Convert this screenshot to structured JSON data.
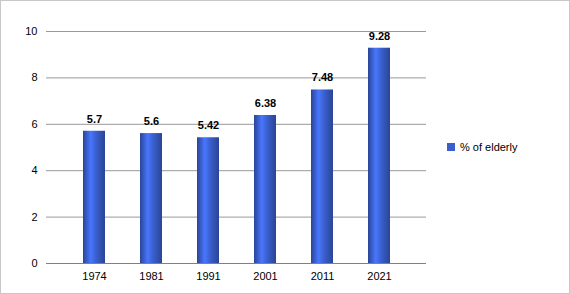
{
  "chart_data": {
    "type": "bar",
    "categories": [
      "1974",
      "1981",
      "1991",
      "2001",
      "2011",
      "2021"
    ],
    "series": [
      {
        "name": "% of elderly",
        "color": "#3a5fcd",
        "values": [
          5.7,
          5.6,
          5.42,
          6.38,
          7.48,
          9.28
        ]
      }
    ],
    "ylim": [
      0,
      10
    ],
    "yticks": [
      0,
      2,
      4,
      6,
      8,
      10
    ],
    "grid": true,
    "legend": "right",
    "data_labels": true
  }
}
